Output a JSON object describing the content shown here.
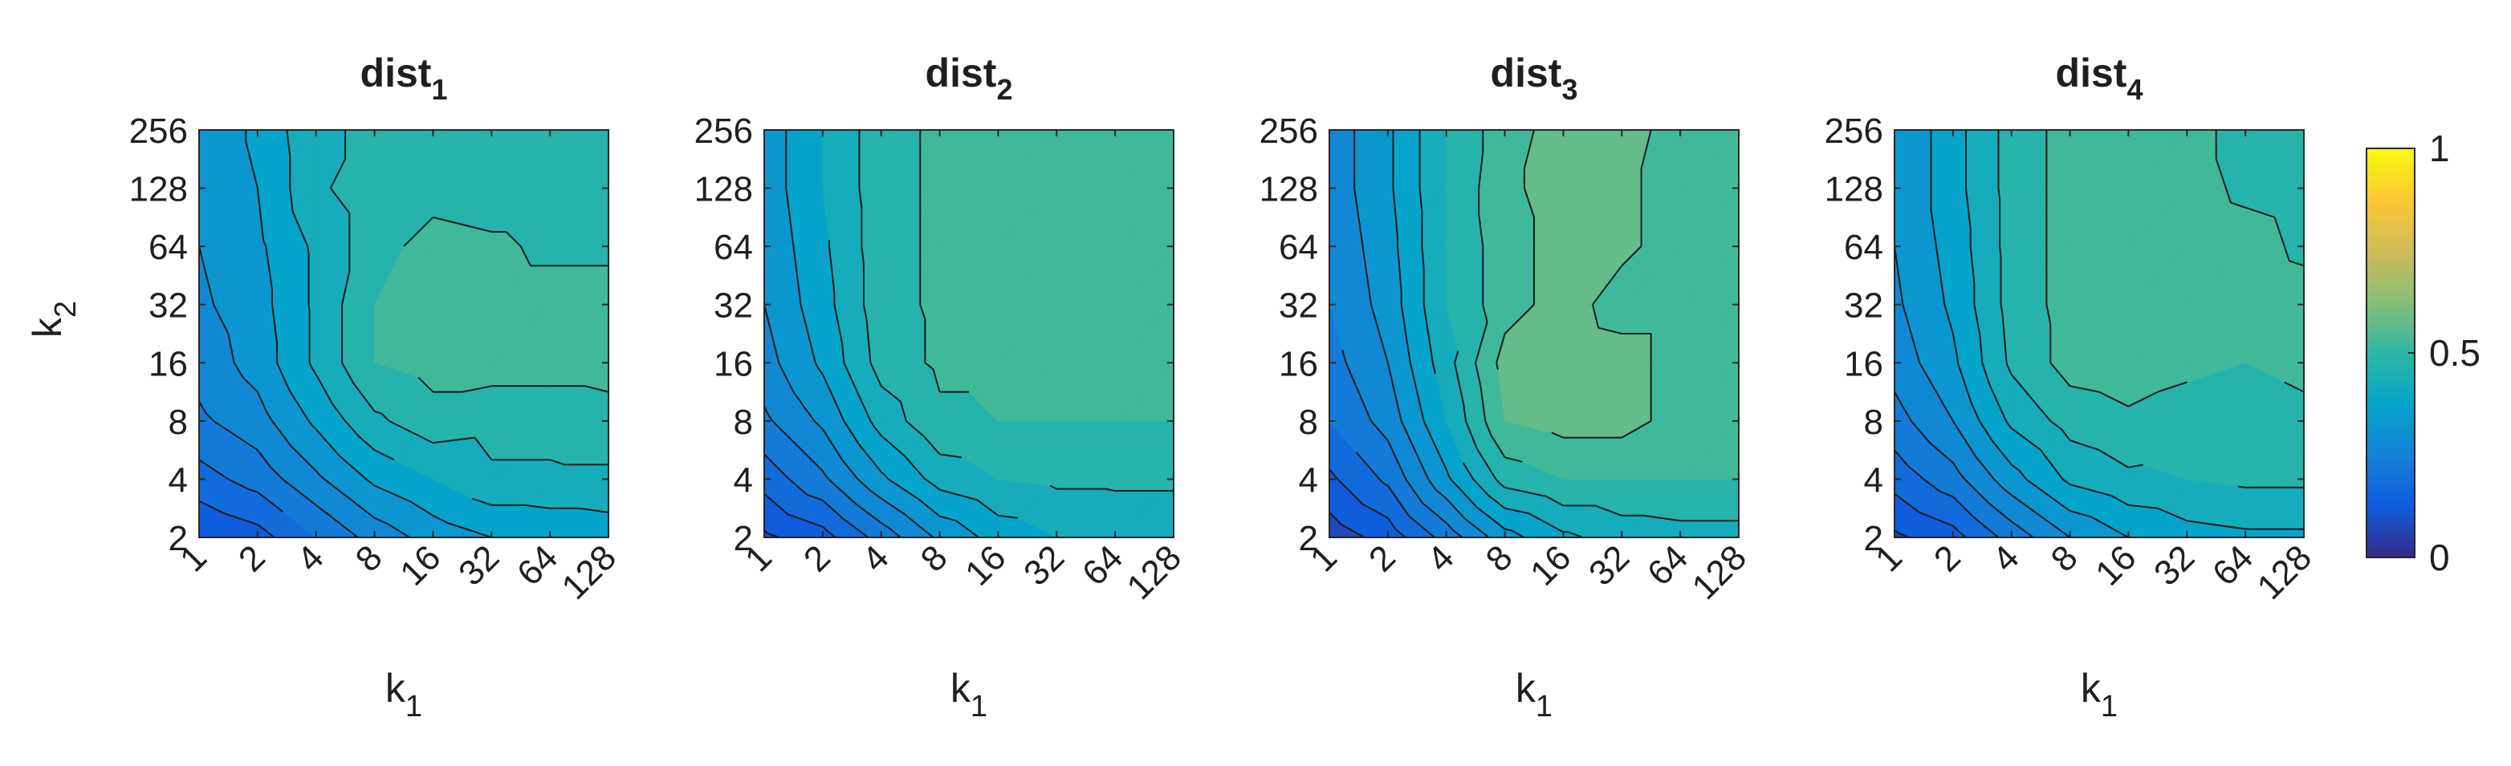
{
  "chart_data": [
    {
      "type": "heatmap",
      "style": "filled-contour",
      "title_base": "dist",
      "title_sub": "1",
      "xlabel_base": "k",
      "xlabel_sub": "1",
      "ylabel_base": "k",
      "ylabel_sub": "2",
      "x_scale": "log2",
      "y_scale": "log2",
      "x": [
        "1",
        "2",
        "4",
        "8",
        "16",
        "32",
        "64",
        "128"
      ],
      "y": [
        "2",
        "4",
        "8",
        "16",
        "32",
        "64",
        "128",
        "256"
      ],
      "z": [
        [
          0.1,
          0.13,
          0.2,
          0.27,
          0.32,
          0.35,
          0.36,
          0.37
        ],
        [
          0.18,
          0.22,
          0.29,
          0.36,
          0.4,
          0.44,
          0.44,
          0.44
        ],
        [
          0.24,
          0.28,
          0.36,
          0.44,
          0.48,
          0.47,
          0.47,
          0.48
        ],
        [
          0.27,
          0.32,
          0.41,
          0.5,
          0.52,
          0.52,
          0.52,
          0.52
        ],
        [
          0.29,
          0.33,
          0.41,
          0.5,
          0.52,
          0.52,
          0.52,
          0.52
        ],
        [
          0.3,
          0.34,
          0.41,
          0.48,
          0.52,
          0.51,
          0.49,
          0.49
        ],
        [
          0.31,
          0.35,
          0.44,
          0.48,
          0.48,
          0.47,
          0.47,
          0.48
        ],
        [
          0.31,
          0.36,
          0.44,
          0.46,
          0.46,
          0.46,
          0.46,
          0.46
        ]
      ]
    },
    {
      "type": "heatmap",
      "style": "filled-contour",
      "title_base": "dist",
      "title_sub": "2",
      "xlabel_base": "k",
      "xlabel_sub": "1",
      "ylabel_base": "",
      "ylabel_sub": "",
      "x_scale": "log2",
      "y_scale": "log2",
      "x": [
        "1",
        "2",
        "4",
        "8",
        "16",
        "32",
        "64",
        "128"
      ],
      "y": [
        "2",
        "4",
        "8",
        "16",
        "32",
        "64",
        "128",
        "256"
      ],
      "z": [
        [
          0.09,
          0.13,
          0.22,
          0.31,
          0.37,
          0.4,
          0.41,
          0.41
        ],
        [
          0.17,
          0.24,
          0.34,
          0.42,
          0.45,
          0.46,
          0.46,
          0.46
        ],
        [
          0.24,
          0.31,
          0.42,
          0.49,
          0.5,
          0.5,
          0.5,
          0.5
        ],
        [
          0.28,
          0.36,
          0.47,
          0.51,
          0.51,
          0.51,
          0.51,
          0.51
        ],
        [
          0.3,
          0.38,
          0.48,
          0.51,
          0.51,
          0.51,
          0.51,
          0.51
        ],
        [
          0.31,
          0.39,
          0.48,
          0.51,
          0.51,
          0.51,
          0.51,
          0.51
        ],
        [
          0.32,
          0.4,
          0.48,
          0.51,
          0.51,
          0.51,
          0.51,
          0.51
        ],
        [
          0.32,
          0.4,
          0.48,
          0.51,
          0.51,
          0.51,
          0.51,
          0.51
        ]
      ]
    },
    {
      "type": "heatmap",
      "style": "filled-contour",
      "title_base": "dist",
      "title_sub": "3",
      "xlabel_base": "k",
      "xlabel_sub": "1",
      "ylabel_base": "",
      "ylabel_sub": "",
      "x_scale": "log2",
      "y_scale": "log2",
      "x": [
        "1",
        "2",
        "4",
        "8",
        "16",
        "32",
        "64",
        "128"
      ],
      "y": [
        "2",
        "4",
        "8",
        "16",
        "32",
        "64",
        "128",
        "256"
      ],
      "z": [
        [
          0.07,
          0.12,
          0.22,
          0.33,
          0.39,
          0.42,
          0.43,
          0.43
        ],
        [
          0.14,
          0.21,
          0.34,
          0.47,
          0.5,
          0.5,
          0.5,
          0.5
        ],
        [
          0.2,
          0.27,
          0.4,
          0.55,
          0.57,
          0.57,
          0.53,
          0.53
        ],
        [
          0.23,
          0.3,
          0.43,
          0.57,
          0.58,
          0.57,
          0.53,
          0.53
        ],
        [
          0.25,
          0.32,
          0.45,
          0.53,
          0.57,
          0.53,
          0.53,
          0.54
        ],
        [
          0.26,
          0.33,
          0.45,
          0.53,
          0.57,
          0.56,
          0.53,
          0.53
        ],
        [
          0.27,
          0.34,
          0.45,
          0.54,
          0.57,
          0.56,
          0.53,
          0.53
        ],
        [
          0.27,
          0.34,
          0.45,
          0.53,
          0.57,
          0.57,
          0.53,
          0.53
        ]
      ]
    },
    {
      "type": "heatmap",
      "style": "filled-contour",
      "title_base": "dist",
      "title_sub": "4",
      "xlabel_base": "k",
      "xlabel_sub": "1",
      "ylabel_base": "",
      "ylabel_sub": "",
      "x_scale": "log2",
      "y_scale": "log2",
      "x": [
        "1",
        "2",
        "4",
        "8",
        "16",
        "32",
        "64",
        "128"
      ],
      "y": [
        "2",
        "4",
        "8",
        "16",
        "32",
        "64",
        "128",
        "256"
      ],
      "z": [
        [
          0.09,
          0.13,
          0.22,
          0.3,
          0.35,
          0.38,
          0.39,
          0.39
        ],
        [
          0.17,
          0.23,
          0.33,
          0.41,
          0.44,
          0.45,
          0.46,
          0.46
        ],
        [
          0.23,
          0.3,
          0.41,
          0.47,
          0.49,
          0.48,
          0.48,
          0.49
        ],
        [
          0.27,
          0.34,
          0.46,
          0.52,
          0.53,
          0.51,
          0.5,
          0.51
        ],
        [
          0.29,
          0.36,
          0.47,
          0.52,
          0.53,
          0.53,
          0.53,
          0.52
        ],
        [
          0.3,
          0.37,
          0.47,
          0.52,
          0.53,
          0.53,
          0.52,
          0.49
        ],
        [
          0.3,
          0.38,
          0.47,
          0.52,
          0.53,
          0.52,
          0.49,
          0.48
        ],
        [
          0.3,
          0.38,
          0.47,
          0.52,
          0.53,
          0.52,
          0.48,
          0.48
        ]
      ]
    }
  ],
  "colorbar": {
    "colormap": "parula",
    "range": [
      0,
      1
    ],
    "ticks": [
      "0",
      "0.5",
      "1"
    ],
    "colors": [
      "#352a87",
      "#0f5cdd",
      "#1481d6",
      "#06a4ca",
      "#2eb7a4",
      "#87bf77",
      "#d1bb59",
      "#fec832",
      "#f9fb0e"
    ]
  }
}
